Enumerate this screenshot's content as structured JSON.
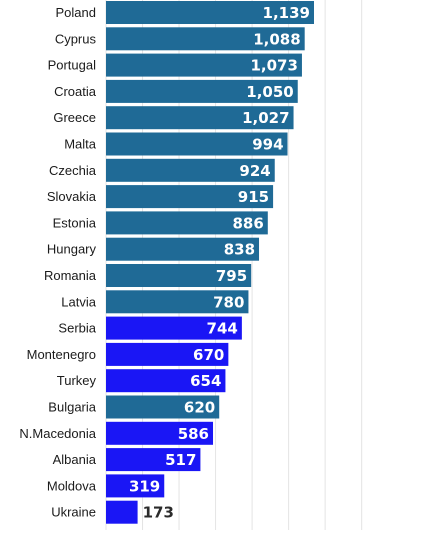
{
  "chart_data": {
    "type": "bar",
    "orientation": "horizontal",
    "categories": [
      "Poland",
      "Cyprus",
      "Portugal",
      "Croatia",
      "Greece",
      "Malta",
      "Czechia",
      "Slovakia",
      "Estonia",
      "Hungary",
      "Romania",
      "Latvia",
      "Serbia",
      "Montenegro",
      "Turkey",
      "Bulgaria",
      "N.Macedonia",
      "Albania",
      "Moldova",
      "Ukraine"
    ],
    "values": [
      1139,
      1088,
      1073,
      1050,
      1027,
      994,
      924,
      915,
      886,
      838,
      795,
      780,
      744,
      670,
      654,
      620,
      586,
      517,
      319,
      173
    ],
    "value_labels": [
      "1,139",
      "1,088",
      "1,073",
      "1,050",
      "1,027",
      "994",
      "924",
      "915",
      "886",
      "838",
      "795",
      "780",
      "744",
      "670",
      "654",
      "620",
      "586",
      "517",
      "319",
      "173"
    ],
    "bar_groups": [
      "eu",
      "eu",
      "eu",
      "eu",
      "eu",
      "eu",
      "eu",
      "eu",
      "eu",
      "eu",
      "eu",
      "eu",
      "non-eu",
      "non-eu",
      "non-eu",
      "eu",
      "non-eu",
      "non-eu",
      "non-eu",
      "non-eu"
    ],
    "colors": {
      "eu": "#1f6a96",
      "non-eu": "#1a16f5",
      "label_inside": "#ffffff",
      "label_outside": "#2b2b2b",
      "grid": "#e4e4e4"
    },
    "xlim": [
      0,
      1500
    ],
    "grid": true
  }
}
